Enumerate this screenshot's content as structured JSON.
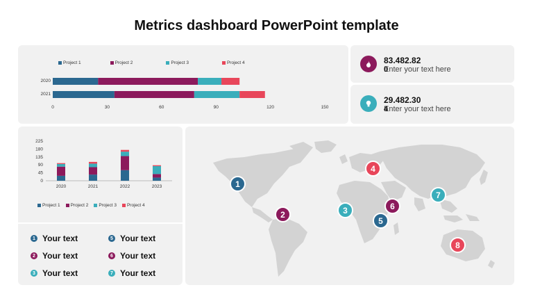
{
  "title": "Metrics dashboard PowerPoint template",
  "colors": {
    "project1": "#2b6890",
    "project2": "#8c1a5c",
    "project3": "#3aaebb",
    "project4": "#e8465a"
  },
  "kpis": [
    {
      "value": "83.482.82",
      "overlay": "0",
      "text": "Enter your text here",
      "icon": "flame-icon",
      "color": "#8c1a5c"
    },
    {
      "value": "29.482.30",
      "overlay": "4",
      "text": "Enter your text here",
      "icon": "lightbulb-icon",
      "color": "#3aaebb"
    }
  ],
  "your_text": [
    {
      "n": "1",
      "label": "Your text",
      "color": "#2b6890"
    },
    {
      "n": "5",
      "label": "Your text",
      "color": "#2b6890"
    },
    {
      "n": "2",
      "label": "Your text",
      "color": "#8c1a5c"
    },
    {
      "n": "6",
      "label": "Your text",
      "color": "#8c1a5c"
    },
    {
      "n": "3",
      "label": "Your text",
      "color": "#3aaebb"
    },
    {
      "n": "7",
      "label": "Your text",
      "color": "#3aaebb"
    }
  ],
  "map_markers": [
    {
      "n": "1",
      "color": "#2b6890"
    },
    {
      "n": "2",
      "color": "#8c1a5c"
    },
    {
      "n": "3",
      "color": "#3aaebb"
    },
    {
      "n": "4",
      "color": "#e8465a"
    },
    {
      "n": "5",
      "color": "#2b6890"
    },
    {
      "n": "6",
      "color": "#8c1a5c"
    },
    {
      "n": "7",
      "color": "#3aaebb"
    },
    {
      "n": "8",
      "color": "#e8465a"
    }
  ],
  "chart_data": [
    {
      "type": "bar",
      "orientation": "horizontal",
      "stacked": true,
      "categories": [
        "2020",
        "2021"
      ],
      "series": [
        {
          "name": "Project 1",
          "values": [
            25,
            34
          ]
        },
        {
          "name": "Project 2",
          "values": [
            55,
            44
          ]
        },
        {
          "name": "Project 3",
          "values": [
            13,
            25
          ]
        },
        {
          "name": "Project 4",
          "values": [
            10,
            14
          ]
        }
      ],
      "xlim": [
        0,
        150
      ],
      "xticks": [
        "0",
        "30",
        "60",
        "90",
        "120",
        "150"
      ],
      "legend": "top"
    },
    {
      "type": "bar",
      "orientation": "vertical",
      "stacked": true,
      "categories": [
        "2020",
        "2021",
        "2022",
        "2023"
      ],
      "series": [
        {
          "name": "Project 1",
          "values": [
            28,
            35,
            60,
            18
          ]
        },
        {
          "name": "Project 2",
          "values": [
            52,
            42,
            80,
            20
          ]
        },
        {
          "name": "Project 3",
          "values": [
            15,
            20,
            25,
            45
          ]
        },
        {
          "name": "Project 4",
          "values": [
            5,
            10,
            10,
            5
          ]
        }
      ],
      "ylim": [
        0,
        225
      ],
      "yticks": [
        "0",
        "45",
        "90",
        "135",
        "180",
        "225"
      ],
      "legend": "bottom"
    }
  ]
}
